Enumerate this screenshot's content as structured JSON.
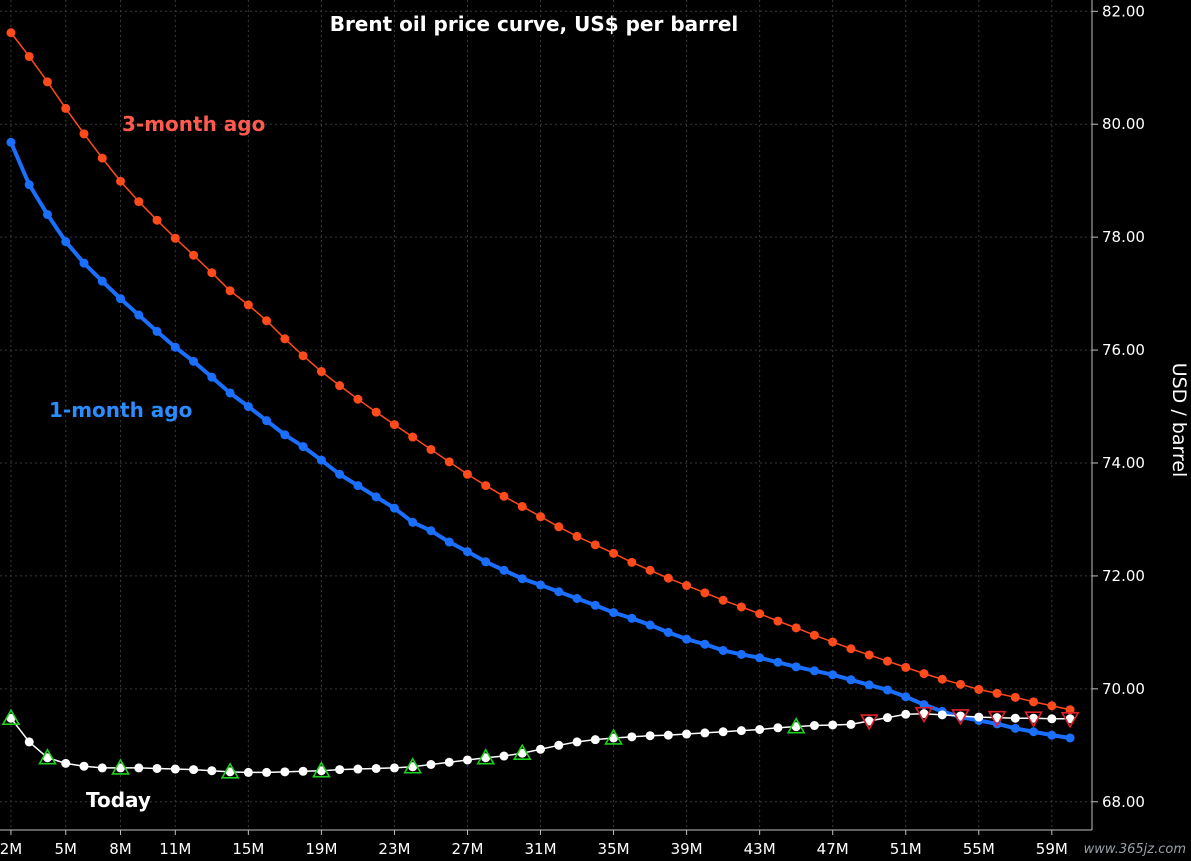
{
  "chart_data": {
    "type": "line",
    "title": "Brent oil price curve, US$ per barrel",
    "xlabel": "",
    "ylabel": "USD / barrel",
    "ylim": [
      67.5,
      82.2
    ],
    "xlim": [
      1.4,
      61.2
    ],
    "y_ticks": [
      68,
      70,
      72,
      74,
      76,
      78,
      80,
      82
    ],
    "y_tick_labels": [
      "68.00",
      "70.00",
      "72.00",
      "74.00",
      "76.00",
      "78.00",
      "80.00",
      "82.00"
    ],
    "x_ticks": [
      2,
      5,
      8,
      11,
      15,
      19,
      23,
      27,
      31,
      35,
      39,
      43,
      47,
      51,
      55,
      59
    ],
    "x_tick_labels": [
      "2M",
      "5M",
      "8M",
      "11M",
      "15M",
      "19M",
      "23M",
      "27M",
      "31M",
      "35M",
      "39M",
      "43M",
      "47M",
      "51M",
      "55M",
      "59M"
    ],
    "grid": true,
    "series": [
      {
        "name": "3-month ago",
        "label": "3-month ago",
        "color": "#ff4a1c",
        "label_color": "#ff5a4e",
        "x": [
          2,
          3,
          4,
          5,
          6,
          7,
          8,
          9,
          10,
          11,
          12,
          13,
          14,
          15,
          16,
          17,
          18,
          19,
          20,
          21,
          22,
          23,
          24,
          25,
          26,
          27,
          28,
          29,
          30,
          31,
          32,
          33,
          34,
          35,
          36,
          37,
          38,
          39,
          40,
          41,
          42,
          43,
          44,
          45,
          46,
          47,
          48,
          49,
          50,
          51,
          52,
          53,
          54,
          55,
          56,
          57,
          58,
          59,
          60
        ],
        "values": [
          81.62,
          81.2,
          80.75,
          80.28,
          79.83,
          79.4,
          78.99,
          78.63,
          78.3,
          77.98,
          77.68,
          77.37,
          77.05,
          76.8,
          76.52,
          76.2,
          75.9,
          75.62,
          75.37,
          75.13,
          74.9,
          74.68,
          74.46,
          74.24,
          74.02,
          73.8,
          73.6,
          73.41,
          73.23,
          73.05,
          72.87,
          72.7,
          72.55,
          72.4,
          72.24,
          72.1,
          71.96,
          71.83,
          71.7,
          71.57,
          71.45,
          71.33,
          71.2,
          71.08,
          70.95,
          70.83,
          70.71,
          70.6,
          70.49,
          70.38,
          70.27,
          70.17,
          70.08,
          69.99,
          69.92,
          69.85,
          69.77,
          69.7,
          69.63
        ]
      },
      {
        "name": "1-month ago",
        "label": "1-month ago",
        "color": "#1a6fff",
        "label_color": "#2a8dff",
        "x": [
          2,
          3,
          4,
          5,
          6,
          7,
          8,
          9,
          10,
          11,
          12,
          13,
          14,
          15,
          16,
          17,
          18,
          19,
          20,
          21,
          22,
          23,
          24,
          25,
          26,
          27,
          28,
          29,
          30,
          31,
          32,
          33,
          34,
          35,
          36,
          37,
          38,
          39,
          40,
          41,
          42,
          43,
          44,
          45,
          46,
          47,
          48,
          49,
          50,
          51,
          52,
          53,
          54,
          55,
          56,
          57,
          58,
          59,
          60
        ],
        "values": [
          79.68,
          78.93,
          78.4,
          77.92,
          77.54,
          77.22,
          76.91,
          76.62,
          76.33,
          76.05,
          75.8,
          75.52,
          75.24,
          75.0,
          74.75,
          74.5,
          74.29,
          74.05,
          73.8,
          73.6,
          73.4,
          73.2,
          72.95,
          72.8,
          72.6,
          72.43,
          72.25,
          72.1,
          71.95,
          71.84,
          71.72,
          71.6,
          71.48,
          71.35,
          71.25,
          71.13,
          71.0,
          70.88,
          70.79,
          70.68,
          70.61,
          70.55,
          70.47,
          70.39,
          70.32,
          70.25,
          70.16,
          70.07,
          69.98,
          69.86,
          69.72,
          69.6,
          69.5,
          69.44,
          69.38,
          69.3,
          69.24,
          69.18,
          69.13
        ]
      },
      {
        "name": "Today",
        "label": "Today",
        "color": "#ffffff",
        "label_color": "#ffffff",
        "x": [
          2,
          3,
          4,
          5,
          6,
          7,
          8,
          9,
          10,
          11,
          12,
          13,
          14,
          15,
          16,
          17,
          18,
          19,
          20,
          21,
          22,
          23,
          24,
          25,
          26,
          27,
          28,
          29,
          30,
          31,
          32,
          33,
          34,
          35,
          36,
          37,
          38,
          39,
          40,
          41,
          42,
          43,
          44,
          45,
          46,
          47,
          48,
          49,
          50,
          51,
          52,
          53,
          54,
          55,
          56,
          57,
          58,
          59,
          60
        ],
        "values": [
          69.48,
          69.06,
          68.78,
          68.68,
          68.63,
          68.6,
          68.6,
          68.6,
          68.59,
          68.58,
          68.57,
          68.55,
          68.53,
          68.52,
          68.52,
          68.53,
          68.54,
          68.55,
          68.57,
          68.58,
          68.59,
          68.6,
          68.62,
          68.66,
          68.7,
          68.74,
          68.78,
          68.81,
          68.86,
          68.93,
          69.0,
          69.06,
          69.1,
          69.13,
          69.15,
          69.17,
          69.18,
          69.2,
          69.22,
          69.24,
          69.26,
          69.28,
          69.31,
          69.33,
          69.35,
          69.36,
          69.37,
          69.43,
          69.49,
          69.55,
          69.56,
          69.54,
          69.52,
          69.5,
          69.49,
          69.48,
          69.48,
          69.47,
          69.47
        ],
        "up_markers": [
          2,
          4,
          8,
          14,
          19,
          24,
          28,
          30,
          35,
          45
        ],
        "down_markers": [
          49,
          52,
          54,
          56,
          58,
          60
        ],
        "up_marker_color": "#1fd11f",
        "down_marker_color": "#e0202a"
      }
    ]
  },
  "watermark": "www.365jz.com"
}
